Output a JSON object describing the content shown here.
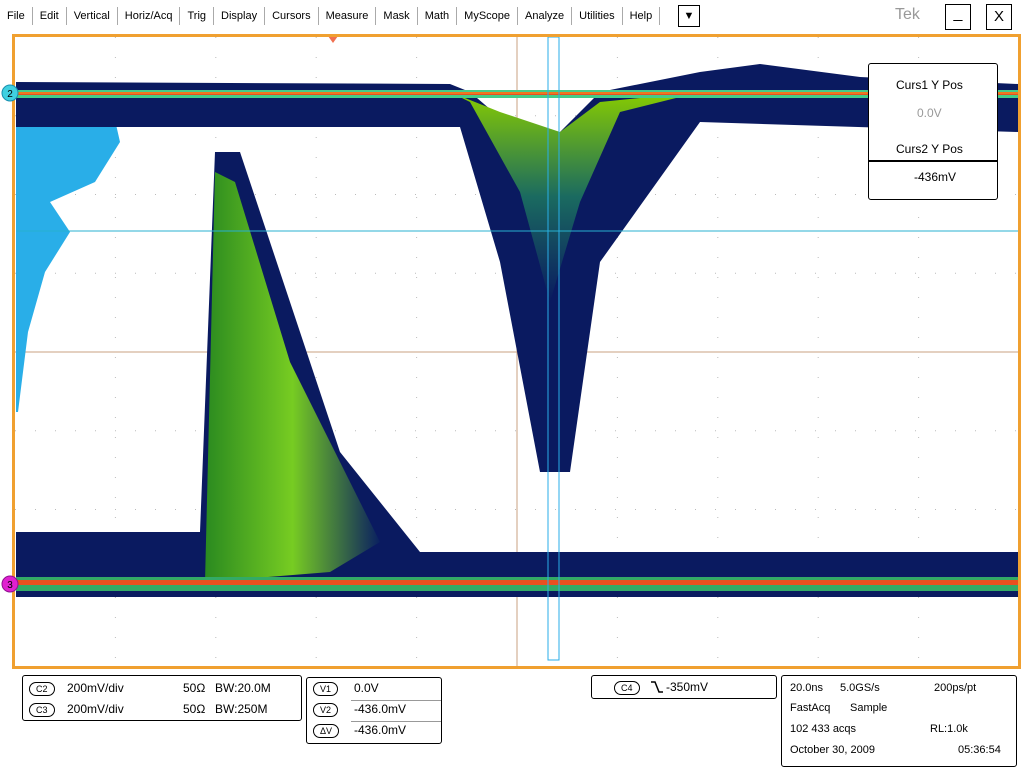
{
  "menu": {
    "items": [
      "File",
      "Edit",
      "Vertical",
      "Horiz/Acq",
      "Trig",
      "Display",
      "Cursors",
      "Measure",
      "Mask",
      "Math",
      "MyScope",
      "Analyze",
      "Utilities",
      "Help"
    ],
    "dropdown": "▼",
    "logo": "Tek",
    "minimize": "_",
    "close": "X"
  },
  "graticule": {
    "ch2_marker": "2",
    "ch3_marker": "3"
  },
  "cursor_readout": {
    "curs1_label": "Curs1 Y Pos",
    "curs1_value": "0.0V",
    "curs2_label": "Curs2 Y Pos",
    "curs2_value": "-436mV"
  },
  "channels": [
    {
      "name": "C2",
      "scale": "200mV/div",
      "termination": "50Ω",
      "bandwidth": "BW:20.0M"
    },
    {
      "name": "C3",
      "scale": "200mV/div",
      "termination": "50Ω",
      "bandwidth": "BW:250M"
    }
  ],
  "cursors": [
    {
      "label": "V1",
      "value": "0.0V"
    },
    {
      "label": "V2",
      "value": "-436.0mV"
    },
    {
      "label": "ΔV",
      "value": "-436.0mV"
    }
  ],
  "trigger": {
    "source": "C4",
    "level": "-350mV"
  },
  "acquisition": {
    "horizontal_scale": "20.0ns",
    "sample_rate": "5.0GS/s",
    "resolution": "200ps/pt",
    "mode": "FastAcq",
    "acq_type": "Sample",
    "acq_count": "102 433 acqs",
    "record_length": "RL:1.0k",
    "date": "October 30, 2009",
    "time": "05:36:54"
  }
}
